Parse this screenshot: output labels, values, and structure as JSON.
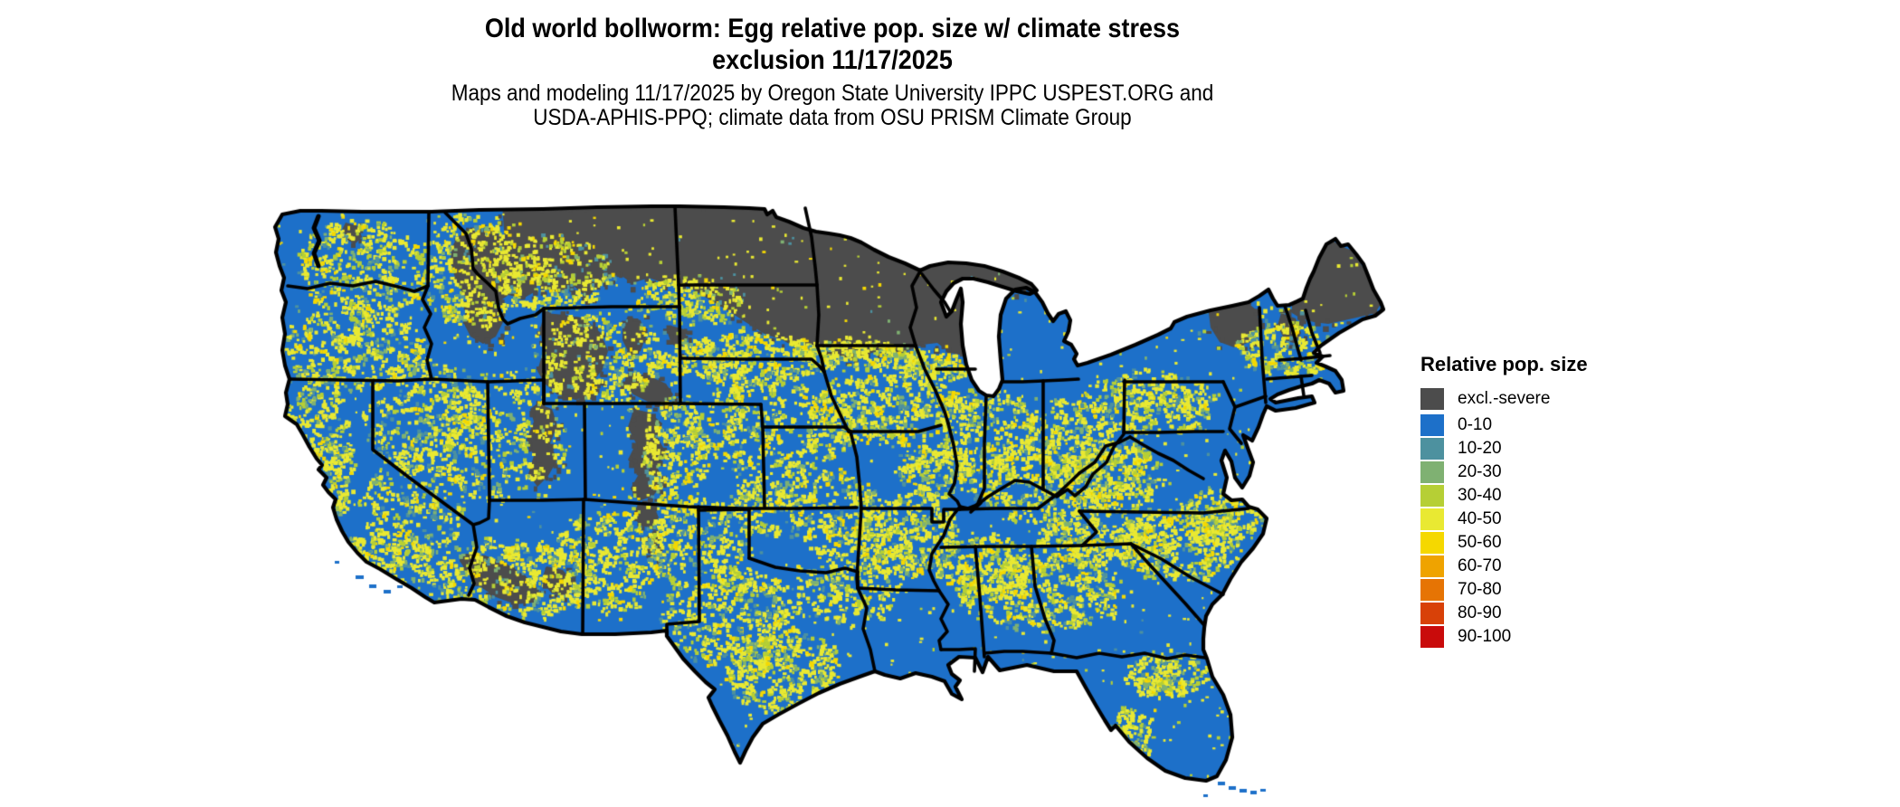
{
  "header": {
    "title_line1": "Old world bollworm: Egg relative pop. size w/ climate stress",
    "title_line2": "exclusion 11/17/2025",
    "subtitle_line1": "Maps and modeling 11/17/2025 by Oregon State University IPPC USPEST.ORG and",
    "subtitle_line2": "USDA-APHIS-PPQ; climate data from OSU PRISM Climate Group"
  },
  "legend": {
    "title": "Relative pop. size",
    "items": [
      {
        "label": "excl.-severe",
        "color": "#4c4c4c"
      },
      {
        "label": "0-10",
        "color": "#1d70c9"
      },
      {
        "label": "10-20",
        "color": "#4d919f"
      },
      {
        "label": "20-30",
        "color": "#7fb172"
      },
      {
        "label": "30-40",
        "color": "#b6cf35"
      },
      {
        "label": "40-50",
        "color": "#e9e932"
      },
      {
        "label": "50-60",
        "color": "#f5d800"
      },
      {
        "label": "60-70",
        "color": "#efa300"
      },
      {
        "label": "70-80",
        "color": "#e67404"
      },
      {
        "label": "80-90",
        "color": "#d84108"
      },
      {
        "label": "90-100",
        "color": "#c90b0b"
      }
    ]
  },
  "map": {
    "water_color": "#ffffff",
    "state_border_color": "#000000",
    "colors": {
      "excluded": "#4c4c4c",
      "base": "#1d70c9",
      "teal": "#4d919f",
      "green": "#7fb172",
      "yellow_green": "#b6cf35",
      "yellow": "#e9e932",
      "gold": "#f5d800"
    }
  }
}
